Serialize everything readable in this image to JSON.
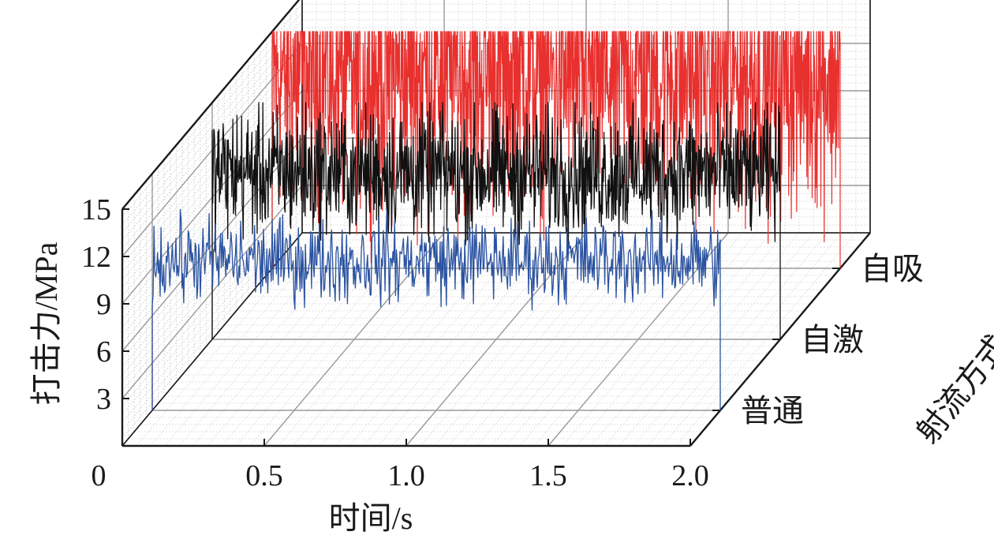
{
  "chart_data": {
    "type": "line",
    "projection": "3d-waterfall",
    "title": "",
    "xlabel": "时间/s",
    "ylabel": "打击力/MPa",
    "zlabel": "射流方式",
    "xlim": [
      0,
      2.0
    ],
    "ylim": [
      0,
      15
    ],
    "x_ticks": [
      "0",
      "0.5",
      "1.0",
      "1.5",
      "2.0"
    ],
    "y_ticks": [
      "3",
      "6",
      "9",
      "12",
      "15"
    ],
    "categories": [
      "普通",
      "自激",
      "自吸"
    ],
    "grid": true,
    "series": [
      {
        "name": "普通",
        "color": "#2a52a0",
        "x_start": 0.0,
        "x_end": 2.0,
        "mean": 9.5,
        "amplitude": 1.3
      },
      {
        "name": "自激",
        "color": "#111111",
        "x_start": 0.0,
        "x_end": 2.0,
        "mean": 10.6,
        "amplitude": 2.0
      },
      {
        "name": "自吸",
        "color": "#e8302e",
        "x_start": 0.0,
        "x_end": 2.0,
        "mean": 12.3,
        "amplitude": 4.2
      }
    ]
  }
}
